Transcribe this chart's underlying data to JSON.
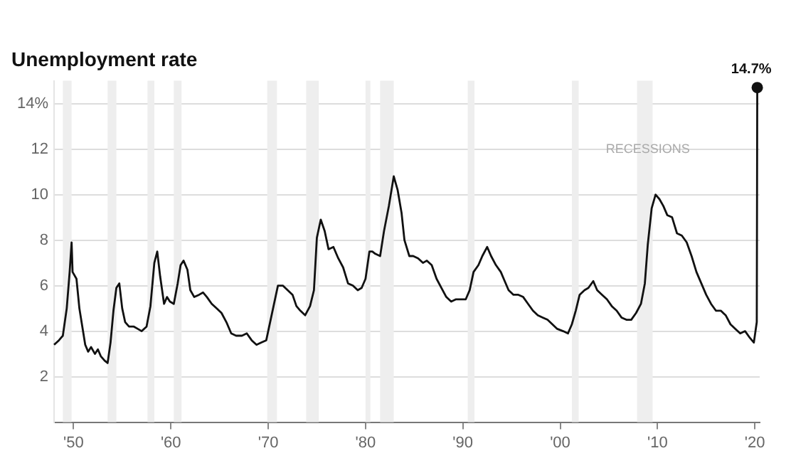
{
  "chart_data": {
    "type": "line",
    "title": "Unemployment rate",
    "xlim": [
      1948,
      2020.5
    ],
    "xticks": [
      {
        "value": 1950,
        "label": "'50"
      },
      {
        "value": 1960,
        "label": "'60"
      },
      {
        "value": 1970,
        "label": "'70"
      },
      {
        "value": 1980,
        "label": "'80"
      },
      {
        "value": 1990,
        "label": "'90"
      },
      {
        "value": 2000,
        "label": "'00"
      },
      {
        "value": 2010,
        "label": "'10"
      },
      {
        "value": 2020,
        "label": "'20"
      }
    ],
    "ylim": [
      0,
      15
    ],
    "yticks": [
      2,
      4,
      6,
      8,
      10,
      12,
      {
        "value": 14,
        "label": "14%"
      }
    ],
    "grid": "y",
    "legend": false,
    "marker": "none",
    "line_style": "solid",
    "x": [
      1948.0,
      1948.5,
      1948.9,
      1949.3,
      1949.6,
      1949.8,
      1949.9,
      1950.3,
      1950.6,
      1950.9,
      1951.2,
      1951.5,
      1951.8,
      1952.2,
      1952.5,
      1952.8,
      1953.2,
      1953.5,
      1953.8,
      1954.1,
      1954.4,
      1954.7,
      1955.0,
      1955.3,
      1955.7,
      1956.2,
      1956.6,
      1957.0,
      1957.5,
      1957.9,
      1958.3,
      1958.6,
      1958.9,
      1959.3,
      1959.6,
      1959.9,
      1960.3,
      1960.7,
      1961.0,
      1961.3,
      1961.7,
      1962.0,
      1962.4,
      1962.9,
      1963.3,
      1963.7,
      1964.2,
      1964.7,
      1965.2,
      1965.7,
      1966.2,
      1966.7,
      1967.3,
      1967.8,
      1968.3,
      1968.8,
      1969.3,
      1969.8,
      1970.3,
      1970.8,
      1971.0,
      1971.5,
      1972.0,
      1972.5,
      1972.9,
      1973.3,
      1973.8,
      1974.3,
      1974.7,
      1975.0,
      1975.4,
      1975.8,
      1976.2,
      1976.7,
      1977.2,
      1977.7,
      1978.2,
      1978.7,
      1979.2,
      1979.6,
      1980.0,
      1980.4,
      1980.7,
      1981.0,
      1981.5,
      1981.9,
      1982.4,
      1982.9,
      1983.3,
      1983.7,
      1984.0,
      1984.5,
      1984.9,
      1985.4,
      1985.9,
      1986.3,
      1986.8,
      1987.3,
      1987.8,
      1988.3,
      1988.8,
      1989.3,
      1989.8,
      1990.3,
      1990.7,
      1991.1,
      1991.6,
      1992.0,
      1992.5,
      1992.9,
      1993.4,
      1993.9,
      1994.3,
      1994.7,
      1995.2,
      1995.7,
      1996.2,
      1996.7,
      1997.2,
      1997.7,
      1998.2,
      1998.7,
      1999.2,
      1999.7,
      2000.3,
      2000.8,
      2001.2,
      2001.6,
      2002.0,
      2002.5,
      2002.9,
      2003.4,
      2003.8,
      2004.3,
      2004.8,
      2005.3,
      2005.8,
      2006.3,
      2006.8,
      2007.3,
      2007.8,
      2008.3,
      2008.7,
      2009.0,
      2009.4,
      2009.8,
      2010.2,
      2010.6,
      2011.0,
      2011.5,
      2012.0,
      2012.5,
      2013.0,
      2013.5,
      2014.0,
      2014.5,
      2015.0,
      2015.5,
      2016.0,
      2016.5,
      2017.0,
      2017.5,
      2018.0,
      2018.5,
      2019.0,
      2019.5,
      2019.9,
      2020.2,
      2020.25
    ],
    "series": [
      {
        "color": "#111111",
        "values": [
          3.4,
          3.6,
          3.8,
          5.0,
          6.6,
          7.9,
          6.6,
          6.3,
          5.0,
          4.2,
          3.4,
          3.1,
          3.3,
          3.0,
          3.2,
          2.9,
          2.7,
          2.6,
          3.5,
          4.9,
          5.9,
          6.1,
          5.0,
          4.4,
          4.2,
          4.2,
          4.1,
          4.0,
          4.2,
          5.1,
          7.0,
          7.5,
          6.4,
          5.2,
          5.5,
          5.3,
          5.2,
          6.1,
          6.9,
          7.1,
          6.7,
          5.8,
          5.5,
          5.6,
          5.7,
          5.5,
          5.2,
          5.0,
          4.8,
          4.4,
          3.9,
          3.8,
          3.8,
          3.9,
          3.6,
          3.4,
          3.5,
          3.6,
          4.6,
          5.6,
          6.0,
          6.0,
          5.8,
          5.6,
          5.1,
          4.9,
          4.7,
          5.1,
          5.8,
          8.1,
          8.9,
          8.4,
          7.6,
          7.7,
          7.2,
          6.8,
          6.1,
          6.0,
          5.8,
          5.9,
          6.3,
          7.5,
          7.5,
          7.4,
          7.3,
          8.4,
          9.5,
          10.8,
          10.2,
          9.2,
          8.0,
          7.3,
          7.3,
          7.2,
          7.0,
          7.1,
          6.9,
          6.3,
          5.9,
          5.5,
          5.3,
          5.4,
          5.4,
          5.4,
          5.8,
          6.6,
          6.9,
          7.3,
          7.7,
          7.3,
          6.9,
          6.6,
          6.2,
          5.8,
          5.6,
          5.6,
          5.5,
          5.2,
          4.9,
          4.7,
          4.6,
          4.5,
          4.3,
          4.1,
          4.0,
          3.9,
          4.3,
          4.9,
          5.6,
          5.8,
          5.9,
          6.2,
          5.8,
          5.6,
          5.4,
          5.1,
          4.9,
          4.6,
          4.5,
          4.5,
          4.8,
          5.2,
          6.1,
          7.8,
          9.4,
          10.0,
          9.8,
          9.5,
          9.1,
          9.0,
          8.3,
          8.2,
          7.9,
          7.3,
          6.6,
          6.1,
          5.6,
          5.2,
          4.9,
          4.9,
          4.7,
          4.3,
          4.1,
          3.9,
          4.0,
          3.7,
          3.5,
          4.4,
          14.7
        ]
      }
    ],
    "bands": [
      {
        "axis": "x",
        "from": 1948.9,
        "to": 1949.8,
        "color": "#eeeeee"
      },
      {
        "axis": "x",
        "from": 1953.5,
        "to": 1954.4,
        "color": "#eeeeee"
      },
      {
        "axis": "x",
        "from": 1957.6,
        "to": 1958.3,
        "color": "#eeeeee"
      },
      {
        "axis": "x",
        "from": 1960.3,
        "to": 1961.1,
        "color": "#eeeeee"
      },
      {
        "axis": "x",
        "from": 1969.9,
        "to": 1970.9,
        "color": "#eeeeee"
      },
      {
        "axis": "x",
        "from": 1973.9,
        "to": 1975.2,
        "color": "#eeeeee"
      },
      {
        "axis": "x",
        "from": 1980.0,
        "to": 1980.5,
        "color": "#eeeeee"
      },
      {
        "axis": "x",
        "from": 1981.5,
        "to": 1982.9,
        "color": "#eeeeee"
      },
      {
        "axis": "x",
        "from": 1990.5,
        "to": 1991.2,
        "color": "#eeeeee"
      },
      {
        "axis": "x",
        "from": 2001.2,
        "to": 2001.9,
        "color": "#eeeeee"
      },
      {
        "axis": "x",
        "from": 2007.9,
        "to": 2009.5,
        "color": "#eeeeee"
      }
    ],
    "annotations": [
      "RECESSIONS",
      {
        "text": "14.7%",
        "x": 2020.25,
        "y": 14.7
      }
    ]
  }
}
